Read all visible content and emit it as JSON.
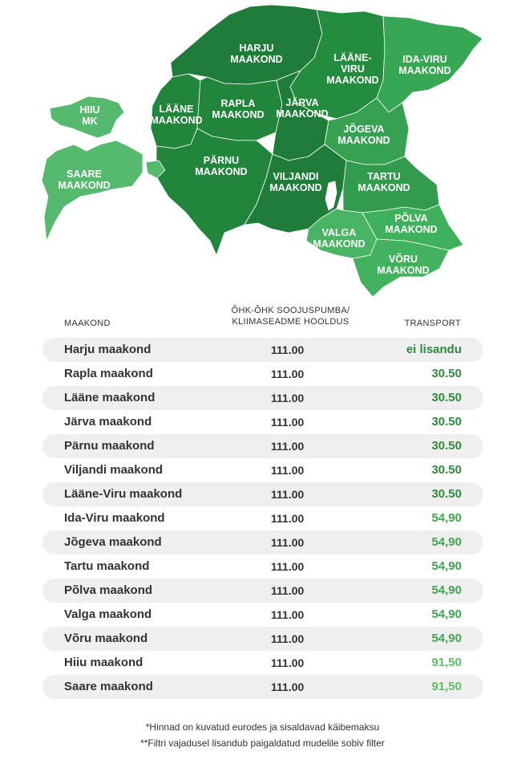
{
  "map": {
    "labels": {
      "harju": [
        "HARJU",
        "MAAKOND"
      ],
      "laane_viru": [
        "LÄÄNE-",
        "VIRU",
        "MAAKOND"
      ],
      "ida_viru": [
        "IDA-VIRU",
        "MAAKOND"
      ],
      "hiiu": [
        "HIIU",
        "MK"
      ],
      "laane": [
        "LÄÄNE",
        "MAAKOND"
      ],
      "rapla": [
        "RAPLA",
        "MAAKOND"
      ],
      "jarva": [
        "JÄRVA",
        "MAAKOND"
      ],
      "jogeva": [
        "JÕGEVA",
        "MAAKOND"
      ],
      "saare": [
        "SAARE",
        "MAAKOND"
      ],
      "parnu": [
        "PÄRNU",
        "MAAKOND"
      ],
      "viljandi": [
        "VILJANDI",
        "MAAKOND"
      ],
      "tartu": [
        "TARTU",
        "MAAKOND"
      ],
      "polva": [
        "PÕLVA",
        "MAAKOND"
      ],
      "valga": [
        "VALGA",
        "MAAKOND"
      ],
      "voru": [
        "VÕRU",
        "MAAKOND"
      ]
    },
    "colors": {
      "dark": "#1b7a36",
      "mid": "#2d9a49",
      "light": "#4fb66b"
    }
  },
  "table": {
    "headers": {
      "county": "MAAKOND",
      "service_line1": "ÕHK-ÕHK SOOJUSPUMBA/",
      "service_line2": "KLIIMASEADME HOOLDUS",
      "transport": "TRANSPORT"
    },
    "rows": [
      {
        "county": "Harju maakond",
        "price": "111.00",
        "transport": "ei lisandu",
        "color": "#2e8b3e"
      },
      {
        "county": "Rapla maakond",
        "price": "111.00",
        "transport": "30.50",
        "color": "#2e8b3e"
      },
      {
        "county": "Lääne maakond",
        "price": "111.00",
        "transport": "30.50",
        "color": "#2e8b3e"
      },
      {
        "county": "Järva maakond",
        "price": "111.00",
        "transport": "30.50",
        "color": "#2e8b3e"
      },
      {
        "county": "Pärnu maakond",
        "price": "111.00",
        "transport": "30.50",
        "color": "#2e8b3e"
      },
      {
        "county": "Viljandi maakond",
        "price": "111.00",
        "transport": "30.50",
        "color": "#2e8b3e"
      },
      {
        "county": "Lääne-Viru maakond",
        "price": "111.00",
        "transport": "30.50",
        "color": "#2e8b3e"
      },
      {
        "county": "Ida-Viru maakond",
        "price": "111.00",
        "transport": "54,90",
        "color": "#3fa64f"
      },
      {
        "county": "Jõgeva maakond",
        "price": "111.00",
        "transport": "54,90",
        "color": "#3fa64f"
      },
      {
        "county": "Tartu maakond",
        "price": "111.00",
        "transport": "54,90",
        "color": "#3fa64f"
      },
      {
        "county": "Põlva maakond",
        "price": "111.00",
        "transport": "54,90",
        "color": "#3fa64f"
      },
      {
        "county": "Valga maakond",
        "price": "111.00",
        "transport": "54,90",
        "color": "#3fa64f"
      },
      {
        "county": "Võru maakond",
        "price": "111.00",
        "transport": "54,90",
        "color": "#3fa64f"
      },
      {
        "county": "Hiiu maakond",
        "price": "111.00",
        "transport": "91,50",
        "color": "#5cbf62"
      },
      {
        "county": "Saare maakond",
        "price": "111.00",
        "transport": "91,50",
        "color": "#5cbf62"
      }
    ]
  },
  "notes": {
    "line1": "*Hinnad on kuvatud eurodes ja sisaldavad käibemaksu",
    "line2": "**Filtri vajadusel lisandub paigaldatud mudelile sobiv filter"
  }
}
